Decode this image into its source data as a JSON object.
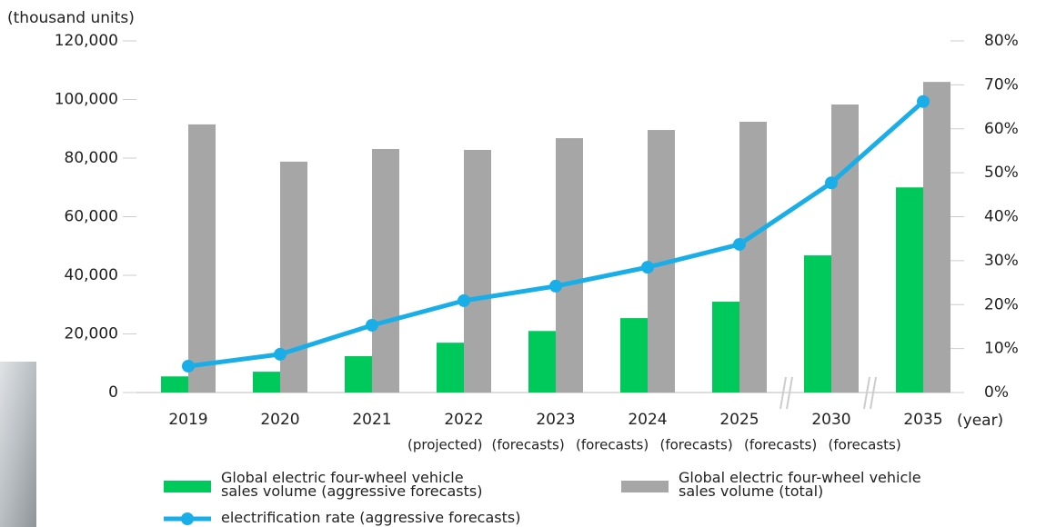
{
  "chart_data": {
    "type": "bar_line",
    "y_label": "(thousand units)",
    "x_label": "(year)",
    "categories": [
      "2019",
      "2020",
      "2021",
      "2022",
      "2023",
      "2024",
      "2025",
      "2030",
      "2035"
    ],
    "x_sublabels": [
      "(projected)",
      "(forecasts)",
      "(forecasts)",
      "(forecasts)",
      "(forecasts)",
      "(forecasts)"
    ],
    "series": [
      {
        "name": "Global electric four-wheel vehicle sales volume (aggressive forecasts)",
        "color": "#00c95c",
        "type": "bar",
        "values": [
          5500,
          7100,
          12400,
          17000,
          21000,
          25400,
          31000,
          46800,
          70000
        ]
      },
      {
        "name": "Global electric four-wheel vehicle sales volume (total)",
        "color": "#a6a6a6",
        "type": "bar",
        "values": [
          91500,
          78800,
          83100,
          82800,
          86800,
          89600,
          92400,
          98300,
          106000
        ]
      },
      {
        "name": "electrification rate (aggressive forecasts)",
        "color": "#1aaee8",
        "type": "line",
        "axis": "y2",
        "values": [
          6.0,
          8.7,
          15.3,
          20.9,
          24.2,
          28.5,
          33.7,
          47.7,
          66.2
        ]
      }
    ],
    "ylim": [
      0,
      120000
    ],
    "yticks": [
      0,
      {
        "value": 20000,
        "label": "20,000"
      },
      {
        "value": 40000,
        "label": "40,000"
      },
      {
        "value": 60000,
        "label": "60,000"
      },
      {
        "value": 80000,
        "label": "80,000"
      },
      {
        "value": 100000,
        "label": "100,000"
      },
      {
        "value": 120000,
        "label": "120,000"
      }
    ],
    "y2lim": [
      0,
      80
    ],
    "y2ticks": [
      {
        "value": 0,
        "label": "0%"
      },
      {
        "value": 10,
        "label": "10%"
      },
      {
        "value": 20,
        "label": "20%"
      },
      {
        "value": 30,
        "label": "30%"
      },
      {
        "value": 40,
        "label": "40%"
      },
      {
        "value": 50,
        "label": "50%"
      },
      {
        "value": 60,
        "label": "60%"
      },
      {
        "value": 70,
        "label": "70%"
      },
      {
        "value": 80,
        "label": "80%"
      }
    ]
  }
}
